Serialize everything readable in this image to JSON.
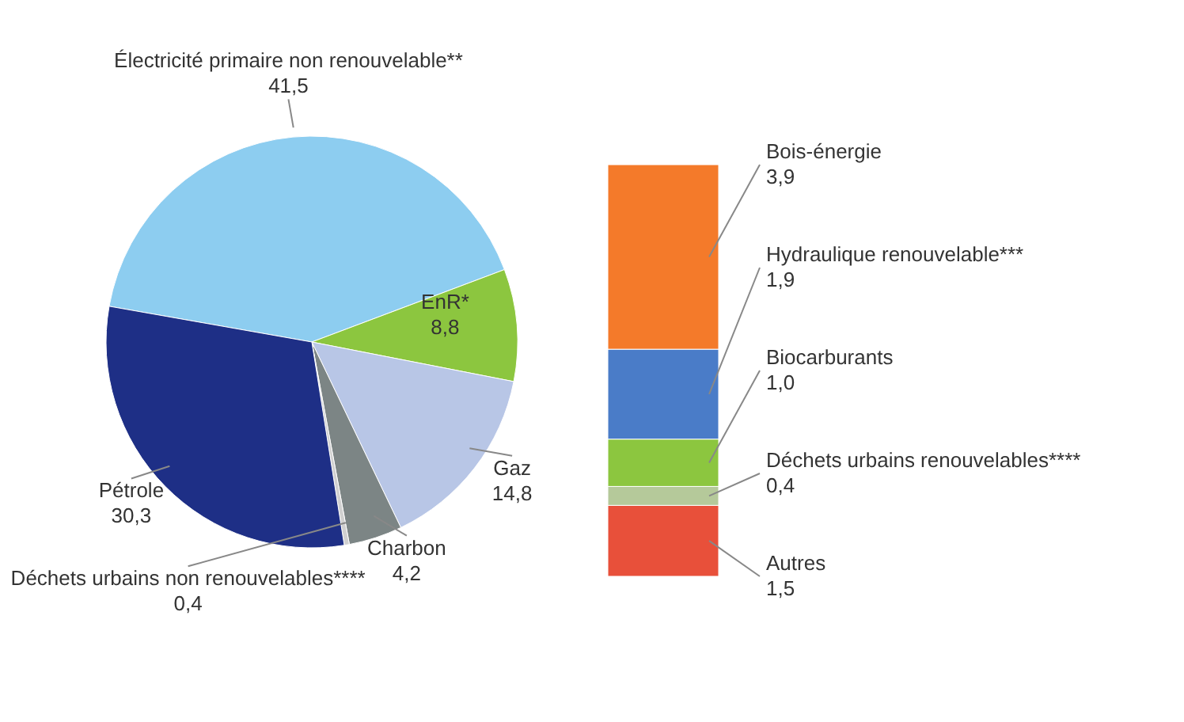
{
  "chart_data": [
    {
      "type": "pie",
      "categories": [
        "Électricité primaire non renouvelable**",
        "EnR*",
        "Gaz",
        "Charbon",
        "Déchets urbains non renouvelables****",
        "Pétrole"
      ],
      "values": [
        41.5,
        8.8,
        14.8,
        4.2,
        0.4,
        30.3
      ],
      "value_labels": [
        "41,5",
        "8,8",
        "14,8",
        "4,2",
        "0,4",
        "30,3"
      ],
      "colors": [
        "#8dcdf0",
        "#8cc63f",
        "#b8c6e6",
        "#7c8585",
        "#d0d0d0",
        "#1e2f86"
      ]
    },
    {
      "type": "bar",
      "stacked": true,
      "categories": [
        null
      ],
      "series": [
        {
          "name": "Autres",
          "color": "#e8503a",
          "values": [
            1.5
          ],
          "value_labels": [
            "1,5"
          ]
        },
        {
          "name": "Déchets urbains renouvelables****",
          "color": "#b5c99a",
          "values": [
            0.4
          ],
          "value_labels": [
            "0,4"
          ]
        },
        {
          "name": "Biocarburants",
          "color": "#8cc63f",
          "values": [
            1.0
          ],
          "value_labels": [
            "1,0"
          ]
        },
        {
          "name": "Hydraulique renouvelable***",
          "color": "#4a7cc8",
          "values": [
            1.9
          ],
          "value_labels": [
            "1,9"
          ]
        },
        {
          "name": "Bois-énergie",
          "color": "#f47a2a",
          "values": [
            3.9
          ],
          "value_labels": [
            "3,9"
          ]
        }
      ]
    }
  ]
}
